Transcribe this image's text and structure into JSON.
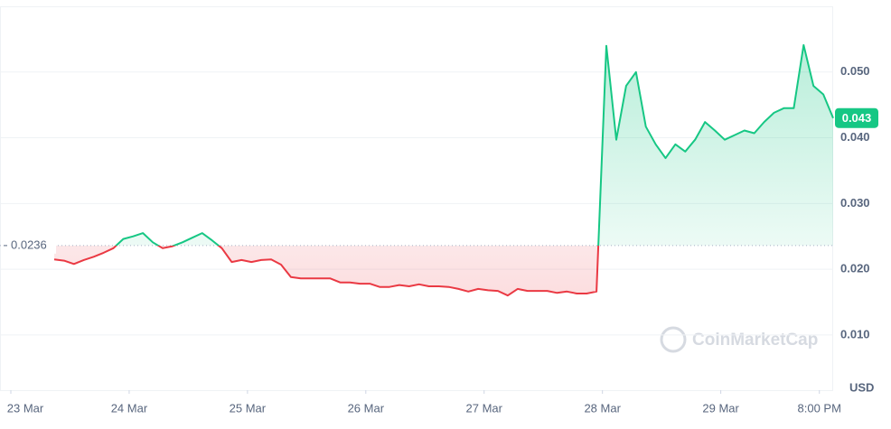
{
  "chart_data": {
    "type": "line",
    "series": [
      {
        "name": "Price",
        "values": [
          0.0215,
          0.0213,
          0.0208,
          0.0214,
          0.0219,
          0.0225,
          0.0232,
          0.0246,
          0.025,
          0.0255,
          0.0241,
          0.0232,
          0.0235,
          0.0241,
          0.0248,
          0.0255,
          0.0244,
          0.0232,
          0.0211,
          0.0214,
          0.0211,
          0.0214,
          0.0215,
          0.0207,
          0.0188,
          0.0186,
          0.0186,
          0.0186,
          0.0186,
          0.018,
          0.018,
          0.0178,
          0.0178,
          0.0173,
          0.0173,
          0.0176,
          0.0174,
          0.0177,
          0.0174,
          0.0174,
          0.0173,
          0.017,
          0.0166,
          0.017,
          0.0168,
          0.0167,
          0.016,
          0.017,
          0.0167,
          0.0167,
          0.0167,
          0.0164,
          0.0166,
          0.0163,
          0.0163,
          0.0166,
          0.054,
          0.0397,
          0.0479,
          0.05,
          0.0417,
          0.039,
          0.0369,
          0.039,
          0.0379,
          0.0397,
          0.0424,
          0.0411,
          0.0397,
          0.0404,
          0.0411,
          0.0407,
          0.0424,
          0.0438,
          0.0445,
          0.0445,
          0.0541,
          0.0479,
          0.0466,
          0.043
        ]
      }
    ],
    "up_color": "#16c784",
    "down_color": "#ea3943",
    "baseline": 0.0236,
    "current_price": 0.043,
    "xlim": [
      -5.5,
      79
    ],
    "xticks": [
      {
        "value": -4.4,
        "label": "23 Mar"
      },
      {
        "value": 7.6,
        "label": "24 Mar"
      },
      {
        "value": 19.6,
        "label": "25 Mar"
      },
      {
        "value": 31.6,
        "label": "26 Mar"
      },
      {
        "value": 43.6,
        "label": "27 Mar"
      },
      {
        "value": 55.6,
        "label": "28 Mar"
      },
      {
        "value": 67.6,
        "label": "29 Mar"
      },
      {
        "value": 77.6,
        "label": "8:00 PM"
      }
    ],
    "ylim": [
      0.0016,
      0.06
    ],
    "yticks": [
      {
        "value": 0.01,
        "label": "0.010"
      },
      {
        "value": 0.02,
        "label": "0.020"
      },
      {
        "value": 0.03,
        "label": "0.030"
      },
      {
        "value": 0.04,
        "label": "0.040"
      },
      {
        "value": 0.05,
        "label": "0.050"
      }
    ],
    "grid": true,
    "currency": "USD",
    "watermark": "CoinMarketCap"
  }
}
